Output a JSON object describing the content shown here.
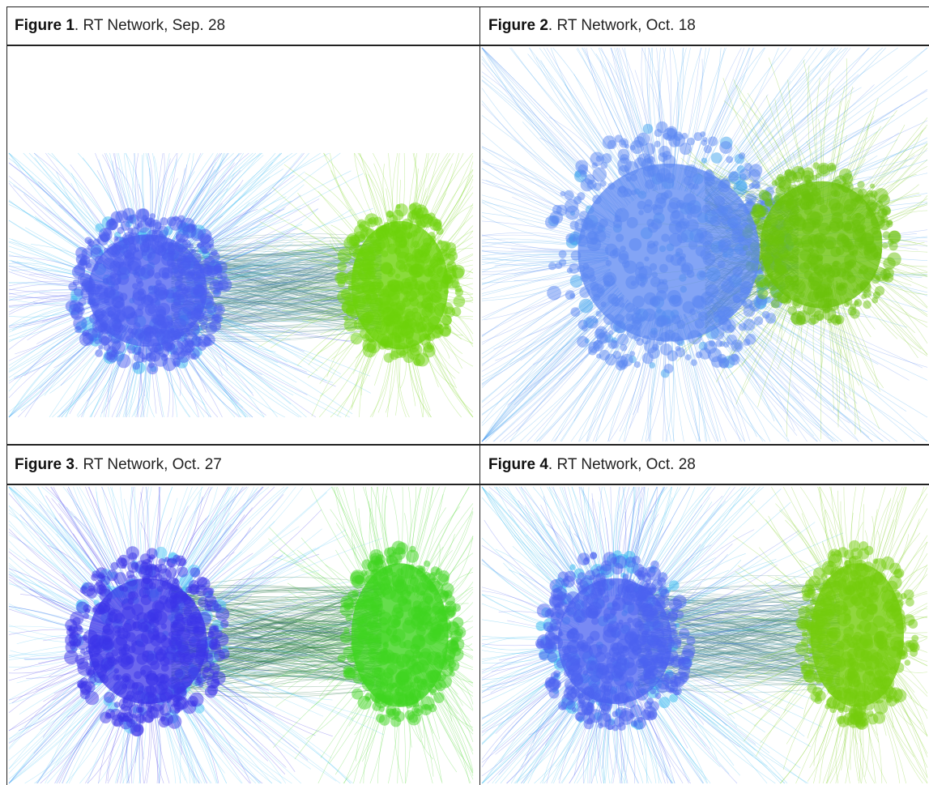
{
  "figures": [
    {
      "label": "Figure 1",
      "caption": ". RT Network, Sep. 28",
      "palette": {
        "left_core": "#4a5cf0",
        "left_edge": "#35b6f0",
        "right_core": "#6dd20a",
        "bridge": "#4f8a8a"
      }
    },
    {
      "label": "Figure 2",
      "caption": ". RT Network, Oct. 18",
      "palette": {
        "left_core": "#5a86f2",
        "left_edge": "#3fa4ee",
        "right_core": "#6cc20b",
        "bridge": "#5a8a6a"
      }
    },
    {
      "label": "Figure 3",
      "caption": ". RT Network, Oct. 27",
      "palette": {
        "left_core": "#3b34e8",
        "left_edge": "#4fc6f6",
        "right_core": "#3fd41f",
        "bridge": "#2f7a4a"
      }
    },
    {
      "label": "Figure 4",
      "caption": ". RT Network, Oct. 28",
      "palette": {
        "left_core": "#4b62f0",
        "left_edge": "#32b8ef",
        "right_core": "#74cc0c",
        "bridge": "#4e8a86"
      }
    }
  ]
}
